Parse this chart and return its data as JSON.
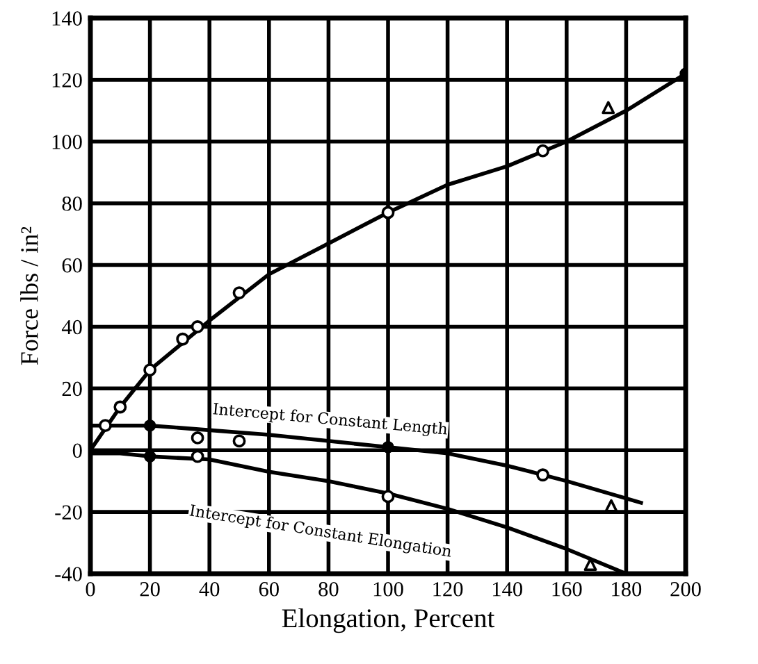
{
  "chart_data": {
    "type": "line",
    "xlabel": "Elongation, Percent",
    "ylabel": "Force lbs / in²",
    "xlim": [
      0,
      200
    ],
    "ylim": [
      -40,
      140
    ],
    "xticks": [
      0,
      20,
      40,
      60,
      80,
      100,
      120,
      140,
      160,
      180,
      200
    ],
    "yticks": [
      -40,
      -20,
      0,
      20,
      40,
      60,
      80,
      100,
      120,
      140
    ],
    "grid": true,
    "legend": false,
    "series": [
      {
        "color": "#000000",
        "marker": "none",
        "x": [
          0,
          10,
          20,
          40,
          60,
          80,
          100,
          120,
          140,
          160,
          180,
          200
        ],
        "values": [
          0,
          14,
          26,
          42,
          57,
          67,
          77,
          86,
          92,
          100,
          110,
          122
        ]
      },
      {
        "color": "#000000",
        "marker": "none",
        "x": [
          0,
          20,
          60,
          100,
          120,
          140,
          160,
          185
        ],
        "values": [
          8,
          8,
          5,
          1,
          -1,
          -5,
          -10,
          -17
        ]
      },
      {
        "color": "#000000",
        "marker": "none",
        "x": [
          0,
          10,
          20,
          40,
          60,
          80,
          100,
          120,
          140,
          160,
          180
        ],
        "values": [
          -1,
          -1,
          -2,
          -3,
          -7,
          -10,
          -14,
          -19,
          -25,
          -32,
          -40
        ]
      },
      {
        "type": "scatter",
        "color": "#000000",
        "marker": "circle",
        "x": [
          5,
          10,
          20,
          31,
          36,
          50,
          100,
          152,
          36,
          50,
          152,
          36,
          100
        ],
        "values": [
          8,
          14,
          26,
          36,
          40,
          51,
          77,
          97,
          4,
          3,
          -8,
          -2,
          -15
        ]
      },
      {
        "type": "scatter",
        "color": "#000000",
        "marker": "triangle",
        "x": [
          174,
          175,
          168
        ],
        "values": [
          111,
          -18,
          -37
        ]
      },
      {
        "type": "scatter",
        "color": "#000000",
        "marker": "dot",
        "x": [
          200,
          20,
          100,
          20
        ],
        "values": [
          122,
          8,
          1,
          -2
        ]
      }
    ],
    "annotations": [
      {
        "text": "Intercept for Constant Length",
        "x": 100,
        "y": 1
      },
      {
        "text": "Intercept for Constant Elongation",
        "x": 100,
        "y": -14
      }
    ]
  }
}
